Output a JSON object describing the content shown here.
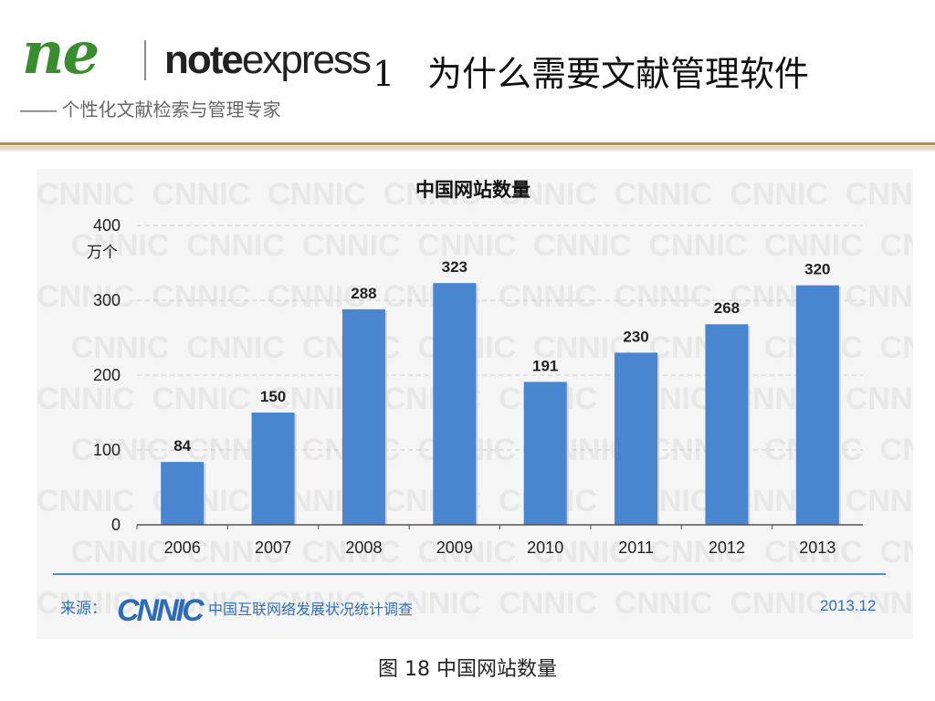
{
  "header": {
    "logo_ne": "ne",
    "logo_note": "note",
    "logo_express": "express",
    "tagline": "—— 个性化文献检索与管理专家",
    "slide_number": "1",
    "slide_title": "为什么需要文献管理软件"
  },
  "watermark_text": "CNNIC",
  "source": {
    "label": "来源：",
    "logo": "CNNIC",
    "org": "中国互联网络发展状况统计调查",
    "date": "2013.12"
  },
  "caption": "图 18 中国网站数量",
  "colors": {
    "bar": "#4a86cf",
    "grid": "#c9c9c9",
    "accent": "#3570b5"
  },
  "chart_data": {
    "type": "bar",
    "title": "中国网站数量",
    "ylabel": "万个",
    "categories": [
      "2006",
      "2007",
      "2008",
      "2009",
      "2010",
      "2011",
      "2012",
      "2013"
    ],
    "values": [
      84,
      150,
      288,
      323,
      191,
      230,
      268,
      320
    ],
    "ylim": [
      0,
      400
    ],
    "yticks": [
      0,
      100,
      200,
      300,
      400
    ],
    "grid": true,
    "legend": "none"
  }
}
